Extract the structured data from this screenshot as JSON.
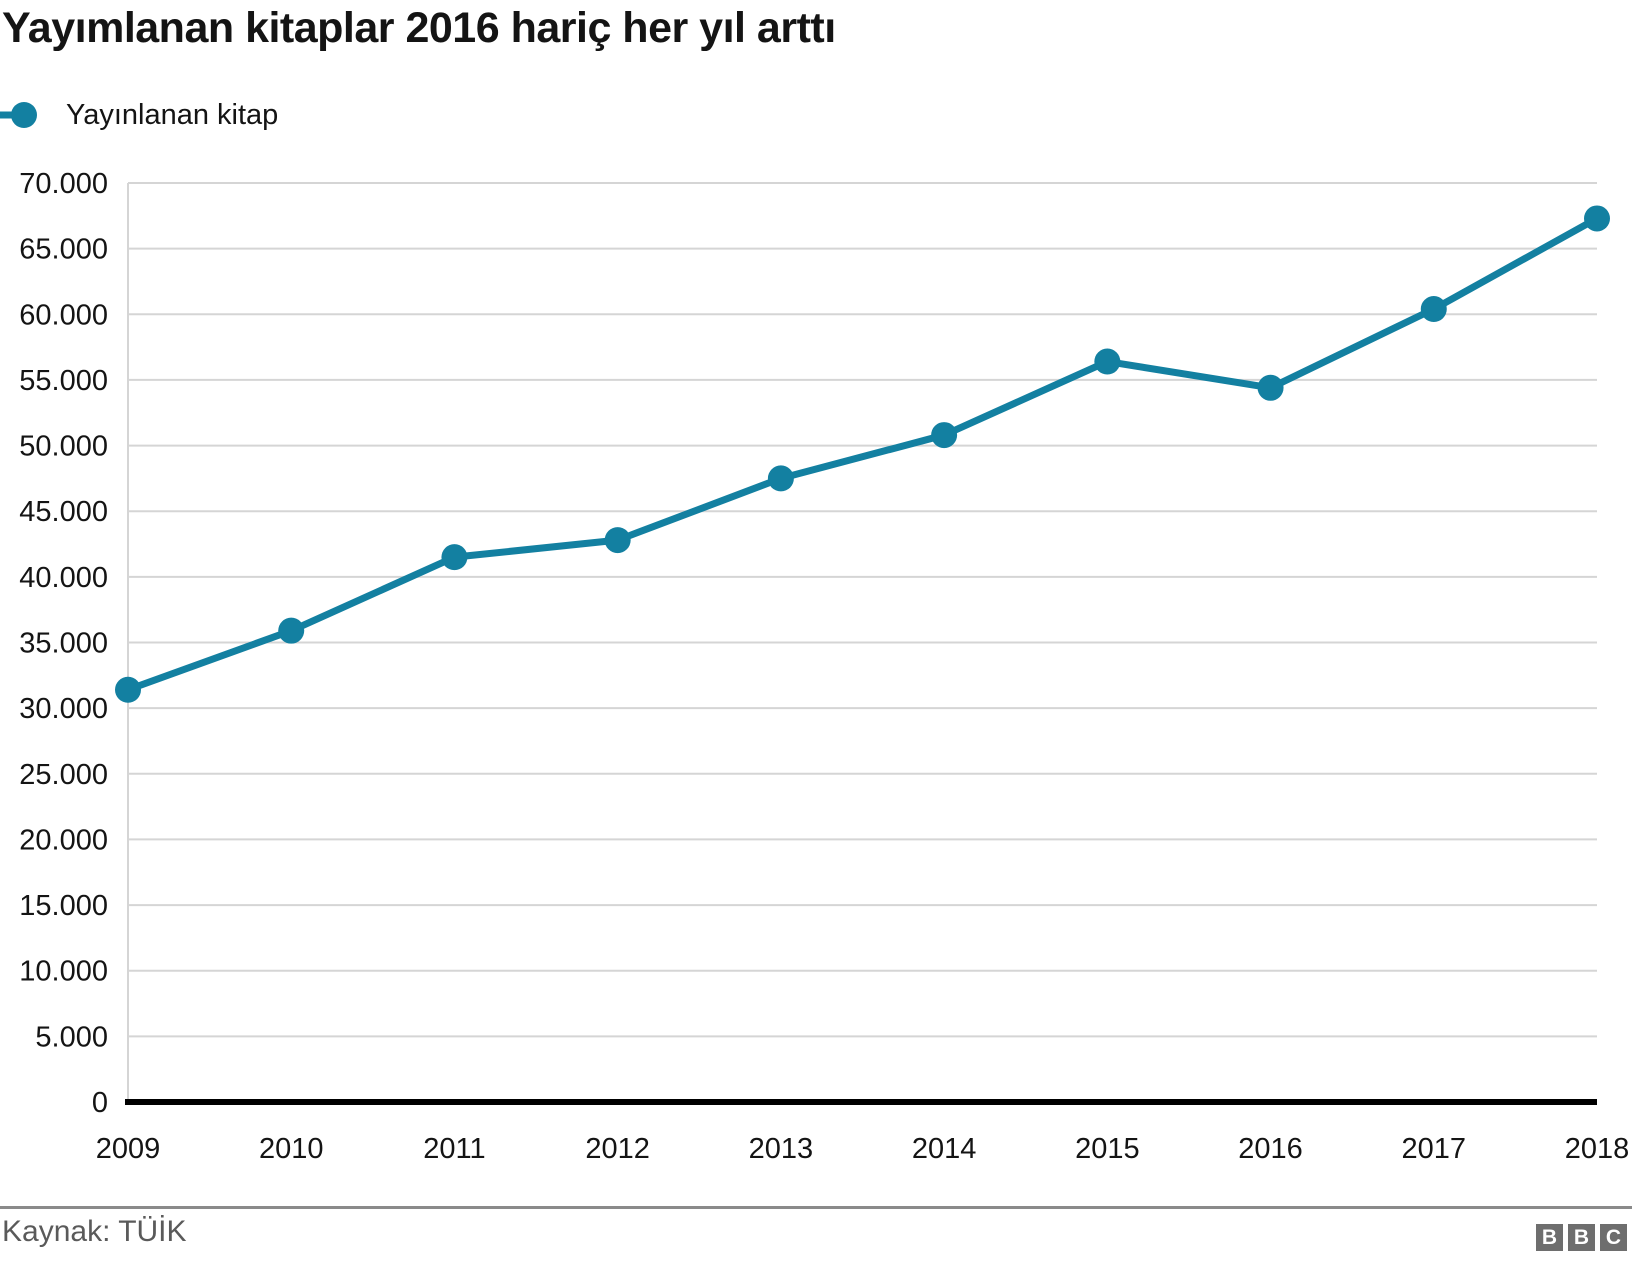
{
  "title": "Yayımlanan kitaplar 2016 hariç her yıl arttı",
  "legend": {
    "label": "Yayınlanan kitap"
  },
  "footer": {
    "source": "Kaynak: TÜİK",
    "logo": [
      "B",
      "B",
      "C"
    ]
  },
  "colors": {
    "line": "#1380A1",
    "grid": "#d5d5d5",
    "axis": "#000000",
    "text": "#141414",
    "muted": "#5a5a5a",
    "divider": "#8a8a8a",
    "logo_bg": "#6e6e6e"
  },
  "chart_data": {
    "type": "line",
    "title": "Yayımlanan kitaplar 2016 hariç her yıl arttı",
    "x": [
      2009,
      2010,
      2011,
      2012,
      2013,
      2014,
      2015,
      2016,
      2017,
      2018
    ],
    "series": [
      {
        "name": "Yayınlanan kitap",
        "values": [
          31400,
          35900,
          41500,
          42800,
          47500,
          50800,
          56400,
          54400,
          60400,
          67300
        ],
        "color": "#1380A1"
      }
    ],
    "xlabel": "",
    "ylabel": "",
    "ylim": [
      0,
      70000
    ],
    "ytick_step": 5000,
    "ytick_labels": [
      "0",
      "5.000",
      "10.000",
      "15.000",
      "20.000",
      "25.000",
      "30.000",
      "35.000",
      "40.000",
      "45.000",
      "50.000",
      "55.000",
      "60.000",
      "65.000",
      "70.000"
    ],
    "grid": true,
    "legend_position": "top-left"
  }
}
